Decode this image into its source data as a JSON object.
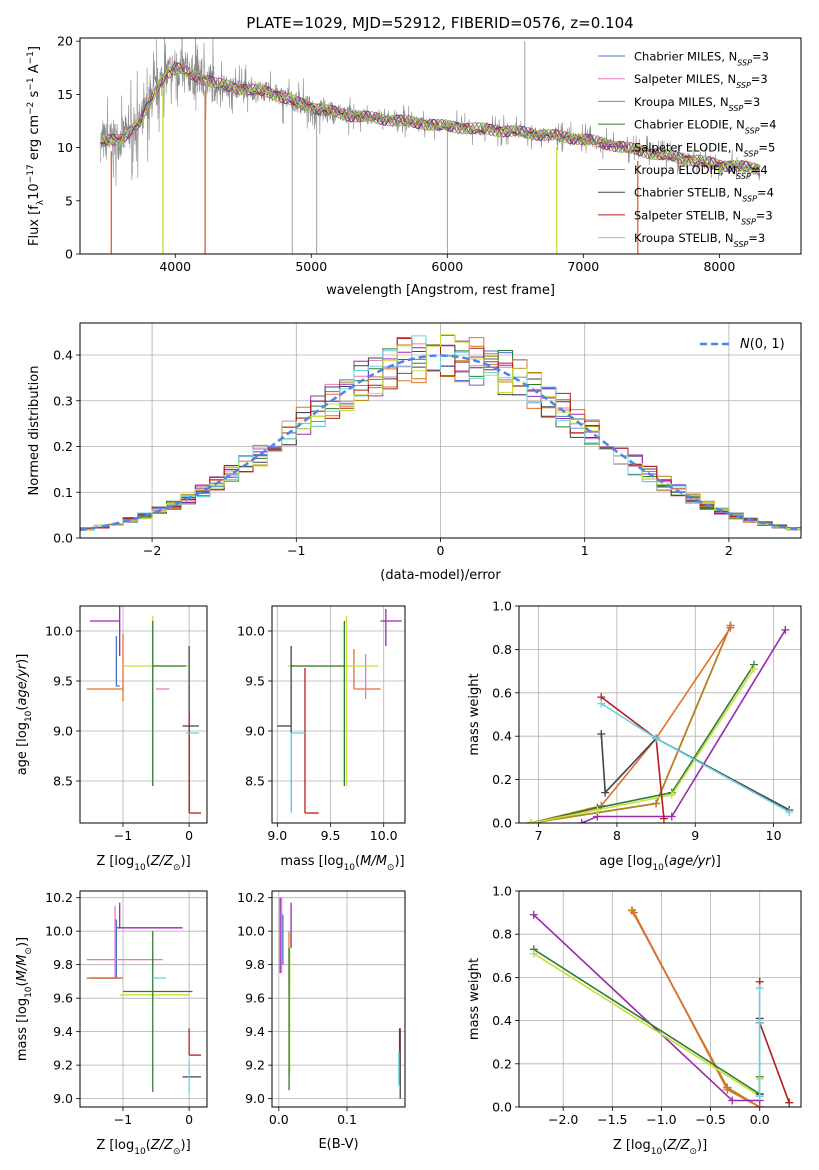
{
  "figure_title": "PLATE=1029, MJD=52912, FIBERID=0576, z=0.104",
  "colors": [
    "#4c72d0",
    "#e377c2",
    "#b8860b",
    "#2e7d32",
    "#9c27b0",
    "#e07030",
    "#444444",
    "#b71c1c",
    "#6ad3e0"
  ],
  "extra_colors": {
    "lime": "#c6e03a",
    "normal_curve": "#4a86e8"
  },
  "chart_data": [
    {
      "id": "spectrum",
      "type": "line",
      "xlabel": "wavelength [Angstrom, rest frame]",
      "ylabel": "Flux [f_λ 10^-17 erg cm^-2 s^-1 A^-1]",
      "xlim": [
        3300,
        8600
      ],
      "ylim": [
        0,
        20.3
      ],
      "xticks": [
        4000,
        5000,
        6000,
        7000,
        8000
      ],
      "yticks": [
        0,
        5,
        10,
        15,
        20
      ],
      "grid": false,
      "legend": "top-right",
      "legend_entries": [
        {
          "label": "Chabrier MILES, N_SSP=3",
          "color": "#4c72d0"
        },
        {
          "label": "Salpeter MILES, N_SSP=3",
          "color": "#e377c2"
        },
        {
          "label": "Kroupa MILES, N_SSP=3",
          "color": "#b8860b"
        },
        {
          "label": "Chabrier ELODIE, N_SSP=4",
          "color": "#2e7d32"
        },
        {
          "label": "Salpeter ELODIE, N_SSP=5",
          "color": "#9c27b0"
        },
        {
          "label": "Kroupa ELODIE, N_SSP=4",
          "color": "#e07030"
        },
        {
          "label": "Chabrier STELIB, N_SSP=4",
          "color": "#444444"
        },
        {
          "label": "Salpeter STELIB, N_SSP=3",
          "color": "#b71c1c"
        },
        {
          "label": "Kroupa STELIB, N_SSP=3",
          "color": "#6ad3e0"
        }
      ],
      "data_anchors": {
        "wavelength": [
          3450,
          3600,
          3750,
          3900,
          4000,
          4100,
          4300,
          4500,
          4700,
          4900,
          5100,
          5300,
          5600,
          6000,
          6500,
          7000,
          7500,
          8000,
          8300
        ],
        "flux": [
          10.5,
          10.8,
          12.5,
          16.5,
          17.5,
          17.0,
          16.0,
          15.5,
          15.2,
          14.2,
          13.5,
          13.0,
          12.6,
          12.0,
          11.5,
          10.8,
          9.5,
          8.4,
          8.0
        ]
      },
      "model_dips": [
        {
          "wavelength": 3530,
          "color": "#e07030"
        },
        {
          "wavelength": 3910,
          "color": "#c6e03a"
        },
        {
          "wavelength": 4220,
          "color": "#e07030"
        },
        {
          "wavelength": 6805,
          "color": "#c6e03a"
        },
        {
          "wavelength": 7400,
          "color": "#e07030"
        }
      ],
      "data_spikes": [
        {
          "wavelength": 4860,
          "flux": 0
        },
        {
          "wavelength": 5040,
          "flux": 0
        },
        {
          "wavelength": 6000,
          "flux": 0
        },
        {
          "wavelength": 6570,
          "flux": 20
        }
      ]
    },
    {
      "id": "residuals",
      "type": "area",
      "xlabel": "(data-model)/error",
      "ylabel": "Normed distribution",
      "xlim": [
        -2.5,
        2.5
      ],
      "ylim": [
        0,
        0.47
      ],
      "xticks": [
        -2,
        -1,
        0,
        1,
        2
      ],
      "yticks": [
        0.0,
        0.1,
        0.2,
        0.3,
        0.4
      ],
      "grid": true,
      "legend": "top-right",
      "legend_entries": [
        {
          "label": "N(0,1)",
          "color": "#4a86e8",
          "style": "dashed"
        }
      ],
      "bin_width": 0.1
    },
    {
      "id": "age_vs_Z",
      "type": "scatter",
      "xlabel": "Z [log10(Z/Z⊙)]",
      "ylabel": "age  [log10(age/yr)]",
      "xlim": [
        -1.65,
        0.27
      ],
      "ylim": [
        8.08,
        10.25
      ],
      "xticks": [
        -1,
        0
      ],
      "yticks": [
        8.5,
        9.0,
        9.5,
        10.0
      ],
      "grid": true,
      "errorbars": [
        {
          "x": -1.05,
          "y": 10.1,
          "xerr": [
            0.45,
            0.0
          ],
          "yerr": [
            0.35,
            0.25
          ],
          "color": "#9c27b0"
        },
        {
          "x": -1.0,
          "y": 9.42,
          "xerr": [
            0.55,
            0.0
          ],
          "yerr": [
            0.12,
            0.55
          ],
          "color": "#e07030"
        },
        {
          "x": -1.1,
          "y": 9.45,
          "xerr": [
            0.0,
            0.05
          ],
          "yerr": [
            0.0,
            0.5
          ],
          "color": "#4c72d0"
        },
        {
          "x": -0.55,
          "y": 9.65,
          "xerr": [
            0.45,
            0.55
          ],
          "yerr": [
            1.2,
            0.5
          ],
          "color": "#c6e03a"
        },
        {
          "x": -0.55,
          "y": 9.65,
          "xerr": [
            0.0,
            0.5
          ],
          "yerr": [
            1.2,
            0.45
          ],
          "color": "#2e7d32"
        },
        {
          "x": 0.0,
          "y": 9.05,
          "xerr": [
            0.1,
            0.15
          ],
          "yerr": [
            0.85,
            0.8
          ],
          "color": "#444444"
        },
        {
          "x": 0.0,
          "y": 8.18,
          "xerr": [
            0.0,
            0.18
          ],
          "yerr": [
            0.0,
            1.0
          ],
          "color": "#b71c1c"
        },
        {
          "x": 0.05,
          "y": 8.98,
          "xerr": [
            0.1,
            0.1
          ],
          "yerr": [
            0.0,
            0.0
          ],
          "color": "#6ad3e0"
        },
        {
          "x": -0.3,
          "y": 9.42,
          "xerr": [
            0.2,
            0.0
          ],
          "yerr": [
            0.0,
            0.0
          ],
          "color": "#e377c2"
        }
      ]
    },
    {
      "id": "age_vs_mass",
      "type": "scatter",
      "xlabel": "mass [log10(M/M⊙)]",
      "ylabel": "",
      "xlim": [
        8.95,
        10.2
      ],
      "ylim": [
        8.08,
        10.25
      ],
      "xticks": [
        9.0,
        9.5,
        10.0
      ],
      "yticks": [
        8.5,
        9.0,
        9.5,
        10.0
      ],
      "grid": true,
      "errorbars": [
        {
          "x": 10.02,
          "y": 10.1,
          "xerr": [
            0.05,
            0.15
          ],
          "yerr": [
            0.25,
            0.12
          ],
          "color": "#9c27b0"
        },
        {
          "x": 9.72,
          "y": 9.42,
          "xerr": [
            0.0,
            0.25
          ],
          "yerr": [
            0.0,
            0.4
          ],
          "color": "#e07030"
        },
        {
          "x": 9.83,
          "y": 9.42,
          "xerr": [
            0.0,
            0.0
          ],
          "yerr": [
            0.1,
            0.35
          ],
          "color": "#e377c2"
        },
        {
          "x": 9.65,
          "y": 9.65,
          "xerr": [
            0.55,
            0.3
          ],
          "yerr": [
            1.2,
            0.5
          ],
          "color": "#c6e03a"
        },
        {
          "x": 9.63,
          "y": 9.65,
          "xerr": [
            0.5,
            0.0
          ],
          "yerr": [
            1.2,
            0.45
          ],
          "color": "#2e7d32"
        },
        {
          "x": 9.13,
          "y": 9.05,
          "xerr": [
            0.13,
            0.0
          ],
          "yerr": [
            0.85,
            0.8
          ],
          "color": "#444444"
        },
        {
          "x": 9.26,
          "y": 8.18,
          "xerr": [
            0.0,
            0.13
          ],
          "yerr": [
            0.0,
            1.45
          ],
          "color": "#b71c1c"
        },
        {
          "x": 9.13,
          "y": 8.98,
          "xerr": [
            0.0,
            0.13
          ],
          "yerr": [
            0.8,
            0.0
          ],
          "color": "#6ad3e0"
        }
      ]
    },
    {
      "id": "weight_vs_age",
      "type": "line",
      "xlabel": "age  [log10(age/yr)]",
      "ylabel": "mass weight",
      "xlim": [
        6.75,
        10.35
      ],
      "ylim": [
        0,
        1.0
      ],
      "xticks": [
        7,
        8,
        9,
        10
      ],
      "yticks": [
        0.0,
        0.2,
        0.4,
        0.6,
        0.8,
        1.0
      ],
      "grid": true,
      "series": [
        {
          "color": "#4c72d0",
          "x": [
            6.9,
            8.5,
            9.45
          ],
          "y": [
            0.0,
            0.09,
            0.91
          ]
        },
        {
          "color": "#e377c2",
          "x": [
            6.9,
            8.5,
            9.45
          ],
          "y": [
            0.0,
            0.09,
            0.91
          ]
        },
        {
          "color": "#b8860b",
          "x": [
            6.9,
            8.5,
            9.45
          ],
          "y": [
            0.0,
            0.09,
            0.91
          ]
        },
        {
          "color": "#e07030",
          "x": [
            6.9,
            7.8,
            8.5,
            9.45
          ],
          "y": [
            0.0,
            0.08,
            0.39,
            0.9
          ]
        },
        {
          "color": "#9c27b0",
          "x": [
            7.55,
            7.75,
            8.7,
            10.15
          ],
          "y": [
            0.0,
            0.03,
            0.03,
            0.89
          ]
        },
        {
          "color": "#2e7d32",
          "x": [
            6.9,
            7.75,
            8.7,
            9.75
          ],
          "y": [
            0.0,
            0.07,
            0.14,
            0.73
          ]
        },
        {
          "color": "#c6e03a",
          "x": [
            6.9,
            7.75,
            8.7,
            9.75
          ],
          "y": [
            0.0,
            0.06,
            0.13,
            0.71
          ]
        },
        {
          "color": "#444444",
          "x": [
            7.8,
            7.85,
            8.5,
            10.2
          ],
          "y": [
            0.41,
            0.14,
            0.39,
            0.06
          ]
        },
        {
          "color": "#b71c1c",
          "x": [
            7.8,
            8.5,
            8.6
          ],
          "y": [
            0.58,
            0.39,
            0.02
          ]
        },
        {
          "color": "#6ad3e0",
          "x": [
            7.8,
            8.5,
            10.2
          ],
          "y": [
            0.55,
            0.39,
            0.05
          ]
        }
      ]
    },
    {
      "id": "mass_vs_Z",
      "type": "scatter",
      "xlabel": "Z [log10(Z/Z⊙)]",
      "ylabel": "mass [log10(M/M⊙)]",
      "xlim": [
        -1.65,
        0.27
      ],
      "ylim": [
        8.95,
        10.24
      ],
      "xticks": [
        -1,
        0
      ],
      "yticks": [
        9.0,
        9.2,
        9.4,
        9.6,
        9.8,
        10.0,
        10.2
      ],
      "grid": true,
      "errorbars": [
        {
          "x": -1.05,
          "y": 10.02,
          "xerr": [
            0.05,
            0.95
          ],
          "yerr": [
            0.0,
            0.15
          ],
          "color": "#9c27b0"
        },
        {
          "x": -1.12,
          "y": 10.0,
          "xerr": [
            0.0,
            0.0
          ],
          "yerr": [
            0.28,
            0.15
          ],
          "color": "#e377c2"
        },
        {
          "x": -1.1,
          "y": 9.72,
          "xerr": [
            0.4,
            0.05
          ],
          "yerr": [
            0.0,
            0.35
          ],
          "color": "#4c72d0"
        },
        {
          "x": -1.0,
          "y": 9.72,
          "xerr": [
            0.55,
            0.0
          ],
          "yerr": [
            0.0,
            0.0
          ],
          "color": "#e07030"
        },
        {
          "x": -1.05,
          "y": 9.83,
          "xerr": [
            0.5,
            0.65
          ],
          "yerr": [
            0.0,
            0.0
          ],
          "color": "#e377c2"
        },
        {
          "x": -0.55,
          "y": 9.62,
          "xerr": [
            0.5,
            0.55
          ],
          "yerr": [
            0.0,
            0.0
          ],
          "color": "#c6e03a"
        },
        {
          "x": -0.55,
          "y": 9.64,
          "xerr": [
            0.45,
            0.6
          ],
          "yerr": [
            0.6,
            0.36
          ],
          "color": "#2e7d32"
        },
        {
          "x": -0.55,
          "y": 9.72,
          "xerr": [
            0.0,
            0.2
          ],
          "yerr": [
            0.0,
            0.0
          ],
          "color": "#6ad3e0"
        },
        {
          "x": 0.0,
          "y": 9.26,
          "xerr": [
            0.0,
            0.18
          ],
          "yerr": [
            0.0,
            0.16
          ],
          "color": "#b71c1c"
        },
        {
          "x": 0.0,
          "y": 9.13,
          "xerr": [
            0.1,
            0.18
          ],
          "yerr": [
            0.0,
            0.0
          ],
          "color": "#444444"
        },
        {
          "x": 0.0,
          "y": 9.13,
          "xerr": [
            0.0,
            0.0
          ],
          "yerr": [
            0.1,
            0.1
          ],
          "color": "#6ad3e0"
        }
      ]
    },
    {
      "id": "mass_vs_ebv",
      "type": "scatter",
      "xlabel": "E(B-V)",
      "ylabel": "",
      "xlim": [
        -0.01,
        0.185
      ],
      "ylim": [
        8.95,
        10.24
      ],
      "xticks": [
        0.0,
        0.1
      ],
      "yticks": [
        9.0,
        9.2,
        9.4,
        9.6,
        9.8,
        10.0,
        10.2
      ],
      "grid": true,
      "errorbars": [
        {
          "x": 0.002,
          "y": 10.1,
          "xerr": [
            0.0,
            0.0
          ],
          "yerr": [
            0.35,
            0.1
          ],
          "color": "#9c27b0"
        },
        {
          "x": 0.004,
          "y": 10.0,
          "xerr": [
            0.0,
            0.0
          ],
          "yerr": [
            0.25,
            0.2
          ],
          "color": "#e377c2"
        },
        {
          "x": 0.006,
          "y": 9.95,
          "xerr": [
            0.0,
            0.0
          ],
          "yerr": [
            0.15,
            0.15
          ],
          "color": "#4c72d0"
        },
        {
          "x": 0.015,
          "y": 9.8,
          "xerr": [
            0.0,
            0.0
          ],
          "yerr": [
            0.15,
            0.2
          ],
          "color": "#e07030"
        },
        {
          "x": 0.018,
          "y": 10.0,
          "xerr": [
            0.0,
            0.0
          ],
          "yerr": [
            0.1,
            0.17
          ],
          "color": "#9c27b0"
        },
        {
          "x": 0.016,
          "y": 9.6,
          "xerr": [
            0.0,
            0.0
          ],
          "yerr": [
            0.45,
            0.4
          ],
          "color": "#c6e03a"
        },
        {
          "x": 0.015,
          "y": 9.55,
          "xerr": [
            0.0,
            0.0
          ],
          "yerr": [
            0.5,
            0.35
          ],
          "color": "#2e7d32"
        },
        {
          "x": 0.178,
          "y": 9.26,
          "xerr": [
            0.0,
            0.0
          ],
          "yerr": [
            0.26,
            0.16
          ],
          "color": "#444444"
        },
        {
          "x": 0.177,
          "y": 9.3,
          "xerr": [
            0.0,
            0.0
          ],
          "yerr": [
            0.1,
            0.12
          ],
          "color": "#b71c1c"
        },
        {
          "x": 0.176,
          "y": 9.18,
          "xerr": [
            0.0,
            0.0
          ],
          "yerr": [
            0.1,
            0.1
          ],
          "color": "#6ad3e0"
        }
      ]
    },
    {
      "id": "weight_vs_Z",
      "type": "line",
      "xlabel": "Z [log10(Z/Z⊙)]",
      "ylabel": "mass weight",
      "xlim": [
        -2.45,
        0.42
      ],
      "ylim": [
        0,
        1.0
      ],
      "xticks": [
        -2.0,
        -1.5,
        -1.0,
        -0.5,
        0.0
      ],
      "yticks": [
        0.0,
        0.2,
        0.4,
        0.6,
        0.8,
        1.0
      ],
      "grid": true,
      "series": [
        {
          "color": "#4c72d0",
          "x": [
            -1.3,
            -0.33,
            0.0
          ],
          "y": [
            0.91,
            0.09,
            0.0
          ]
        },
        {
          "color": "#e377c2",
          "x": [
            -1.3,
            -0.33,
            0.0
          ],
          "y": [
            0.91,
            0.09,
            0.0
          ]
        },
        {
          "color": "#b8860b",
          "x": [
            -1.3,
            -0.33,
            0.0
          ],
          "y": [
            0.91,
            0.09,
            0.0
          ]
        },
        {
          "color": "#e07030",
          "x": [
            -1.28,
            -0.33,
            0.0
          ],
          "y": [
            0.9,
            0.08,
            0.0
          ]
        },
        {
          "color": "#9c27b0",
          "x": [
            -2.3,
            -0.28,
            0.0
          ],
          "y": [
            0.89,
            0.03,
            0.03
          ]
        },
        {
          "color": "#2e7d32",
          "x": [
            -2.3,
            0.0,
            0.0
          ],
          "y": [
            0.73,
            0.06,
            0.14
          ]
        },
        {
          "color": "#c6e03a",
          "x": [
            -2.3,
            0.0,
            0.0
          ],
          "y": [
            0.71,
            0.05,
            0.13
          ]
        },
        {
          "color": "#444444",
          "x": [
            0.0,
            0.0,
            0.0
          ],
          "y": [
            0.41,
            0.39,
            0.06
          ]
        },
        {
          "color": "#b71c1c",
          "x": [
            0.0,
            0.0,
            0.3
          ],
          "y": [
            0.58,
            0.39,
            0.02
          ]
        },
        {
          "color": "#6ad3e0",
          "x": [
            0.0,
            0.0,
            0.0
          ],
          "y": [
            0.55,
            0.39,
            0.05
          ]
        }
      ]
    }
  ]
}
